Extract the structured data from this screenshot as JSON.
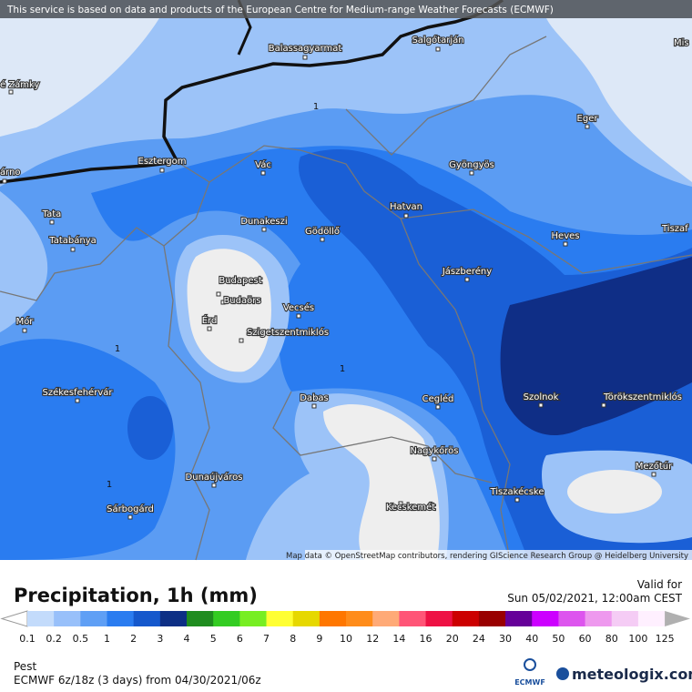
{
  "header": {
    "text": "This service is based on data and products of the European Centre for Medium-range Weather Forecasts (ECMWF)"
  },
  "map": {
    "cities": [
      "Balassagyarmat",
      "Salgótarján",
      "Mis",
      "é Zámky",
      "Eger",
      "Esztergom",
      "Vác",
      "Gyöngyös",
      "árno",
      "Hatvan",
      "Tata",
      "Dunakeszi",
      "Gödöllő",
      "Heves",
      "Tiszaf",
      "Tatabánya",
      "Jászberény",
      "Budapest",
      "Budaörs",
      "Mór",
      "Vecsés",
      "Érd",
      "Szigetszentmiklós",
      "Székesfehérvár",
      "Szolnok",
      "Törökszentmiklós",
      "Dabas",
      "Cegléd",
      "Nagykőrös",
      "Mezőtúr",
      "Dunaújváros",
      "Tiszakécske",
      "Kecskemét",
      "Sárbogárd"
    ],
    "contour_labels": [
      1,
      1,
      1,
      1
    ],
    "attribution": "Map data © OpenStreetMap contributors, rendering GIScience Research Group @ Heidelberg University"
  },
  "legend": {
    "title": "Precipitation, 1h (mm)",
    "valid_label": "Valid for",
    "valid_time": "Sun 05/02/2021, 12:00am CEST",
    "ticks": [
      0.1,
      0.2,
      0.5,
      1,
      2,
      3,
      4,
      5,
      6,
      7,
      8,
      9,
      10,
      12,
      14,
      16,
      20,
      24,
      30,
      40,
      50,
      60,
      80,
      100,
      125
    ],
    "colors": [
      "#ffffff",
      "#c3dbfb",
      "#98c0fa",
      "#5f9ff5",
      "#2a7cf0",
      "#1558cc",
      "#0d2f85",
      "#1f8c1f",
      "#33cc22",
      "#77ee22",
      "#ffff33",
      "#e6d800",
      "#ff7700",
      "#ff8c1a",
      "#ffaa77",
      "#ff5577",
      "#ee1144",
      "#cc0000",
      "#990000",
      "#660099",
      "#cc00ff",
      "#dd55ee",
      "#ee99ee",
      "#f5ccf5",
      "#fff0ff",
      "#b0b0b0"
    ]
  },
  "footer": {
    "region": "Pest",
    "model": "ECMWF 6z/18z (3 days) from 04/30/2021/06z",
    "logos": [
      "ECMWF",
      "meteologix.com"
    ]
  }
}
